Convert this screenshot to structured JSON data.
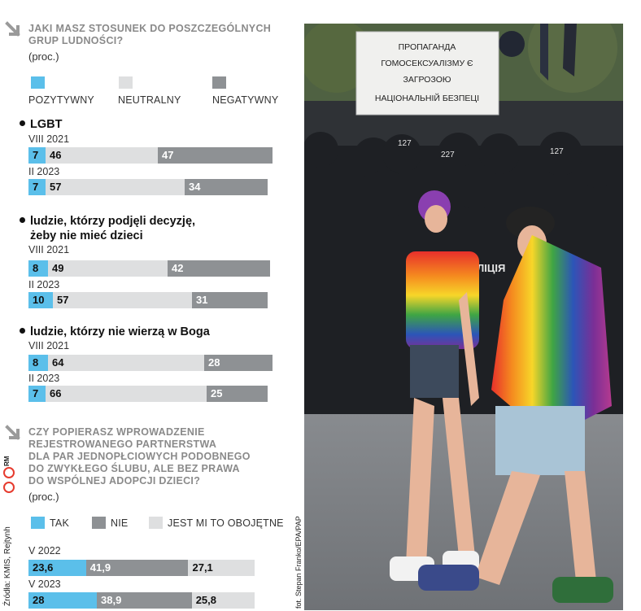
{
  "q1": {
    "title_line1": "JAKI MASZ STOSUNEK DO POSZCZEGÓLNYCH",
    "title_line2": "GRUP LUDNOŚCI?",
    "unit": "(proc.)",
    "legend": {
      "positive": "POZYTYWNY",
      "neutral": "NEUTRALNY",
      "negative": "NEGATYWNY"
    },
    "groups": [
      {
        "title_line1": "LGBT",
        "title_line2": "",
        "rows": [
          {
            "period": "VIII 2021",
            "pos": 7,
            "neu": 46,
            "neg": 47
          },
          {
            "period": "II 2023",
            "pos": 7,
            "neu": 57,
            "neg": 34
          }
        ]
      },
      {
        "title_line1": "ludzie, którzy podjęli decyzję,",
        "title_line2": "żeby nie mieć dzieci",
        "rows": [
          {
            "period": "VIII 2021",
            "pos": 8,
            "neu": 49,
            "neg": 42
          },
          {
            "period": "II 2023",
            "pos": 10,
            "neu": 57,
            "neg": 31
          }
        ]
      },
      {
        "title_line1": "ludzie, którzy nie wierzą w Boga",
        "title_line2": "",
        "rows": [
          {
            "period": "VIII 2021",
            "pos": 8,
            "neu": 64,
            "neg": 28
          },
          {
            "period": "II 2023",
            "pos": 7,
            "neu": 66,
            "neg": 25
          }
        ]
      }
    ]
  },
  "q2": {
    "title_lines": [
      "CZY POPIERASZ WPROWADZENIE",
      "REJESTROWANEGO PARTNERSTWA",
      "DLA PAR JEDNOPŁCIOWYCH PODOBNEGO",
      "DO ZWYKŁEGO ŚLUBU, ALE BEZ PRAWA",
      "DO WSPÓLNEJ ADOPCJI DZIECI?"
    ],
    "unit": "(proc.)",
    "legend": {
      "yes": "TAK",
      "no": "NIE",
      "indifferent": "JEST MI TO OBOJĘTNE"
    },
    "rows": [
      {
        "period": "V 2022",
        "yes": "23,6",
        "no": "41,9",
        "indifferent": "27,1"
      },
      {
        "period": "V 2023",
        "yes": "28",
        "no": "38,9",
        "indifferent": "25,8"
      }
    ]
  },
  "chart_data": [
    {
      "type": "bar",
      "title": "JAKI MASZ STOSUNEK DO POSZCZEGÓLNYCH GRUP LUDNOŚCI?",
      "unit": "(proc.)",
      "stacked": true,
      "orientation": "horizontal",
      "categories": [
        "LGBT VIII 2021",
        "LGBT II 2023",
        "ludzie, którzy podjęli decyzję, żeby nie mieć dzieci VIII 2021",
        "ludzie, którzy podjęli decyzję, żeby nie mieć dzieci II 2023",
        "ludzie, którzy nie wierzą w Boga VIII 2021",
        "ludzie, którzy nie wierzą w Boga II 2023"
      ],
      "series": [
        {
          "name": "POZYTYWNY",
          "values": [
            7,
            7,
            8,
            10,
            8,
            7
          ]
        },
        {
          "name": "NEUTRALNY",
          "values": [
            46,
            57,
            49,
            57,
            64,
            66
          ]
        },
        {
          "name": "NEGATYWNY",
          "values": [
            47,
            34,
            42,
            31,
            28,
            25
          ]
        }
      ]
    },
    {
      "type": "bar",
      "title": "CZY POPIERASZ WPROWADZENIE REJESTROWANEGO PARTNERSTWA DLA PAR JEDNOPŁCIOWYCH PODOBNEGO DO ZWYKŁEGO ŚLUBU, ALE BEZ PRAWA DO WSPÓLNEJ ADOPCJI DZIECI?",
      "unit": "(proc.)",
      "stacked": true,
      "orientation": "horizontal",
      "categories": [
        "V 2022",
        "V 2023"
      ],
      "series": [
        {
          "name": "TAK",
          "values": [
            23.6,
            28
          ]
        },
        {
          "name": "NIE",
          "values": [
            41.9,
            38.9
          ]
        },
        {
          "name": "JEST MI TO OBOJĘTNE",
          "values": [
            27.1,
            25.8
          ]
        }
      ]
    }
  ],
  "colors": {
    "positive": "#5bbfea",
    "neutral": "#dedfe0",
    "negative": "#8e9194"
  },
  "source": "Źródła: KMIS, Rejtynh",
  "source_logo": "RM",
  "photo": {
    "banner_line1": "ПРОПАГАНДА",
    "banner_line2": "ГОМОСЕКСУАЛІЗМУ Є",
    "banner_line3": "ЗАГРОЗОЮ",
    "banner_line4": "НАЦІОНАЛЬНІЙ БЕЗПЕЦІ",
    "police_label": "ПОЛІЦІЯ",
    "helmet_numbers": [
      "127",
      "227",
      "127"
    ],
    "credit": "fot. Stepan Franko/EPA/PAP"
  }
}
